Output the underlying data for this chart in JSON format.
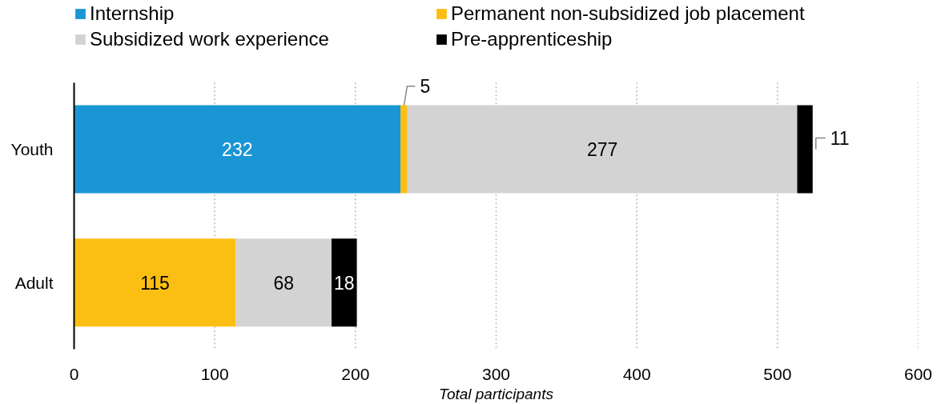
{
  "chart_data": {
    "type": "bar",
    "orientation": "horizontal",
    "stacked": true,
    "categories": [
      "Youth",
      "Adult"
    ],
    "series": [
      {
        "name": "Internship",
        "color": "#1b96d4",
        "values": [
          232,
          null
        ]
      },
      {
        "name": "Permanent non-subsidized job placement",
        "color": "#fbbf14",
        "values": [
          5,
          115
        ]
      },
      {
        "name": "Subsidized work experience",
        "color": "#d3d3d3",
        "values": [
          277,
          68
        ]
      },
      {
        "name": "Pre-apprenticeship",
        "color": "#000000",
        "values": [
          11,
          18
        ]
      }
    ],
    "xlabel": "Total participants",
    "xlim": [
      0,
      600
    ],
    "xticks": [
      0,
      100,
      200,
      300,
      400,
      500,
      600
    ],
    "grid": "x",
    "legend": "top",
    "data_labels": true
  }
}
